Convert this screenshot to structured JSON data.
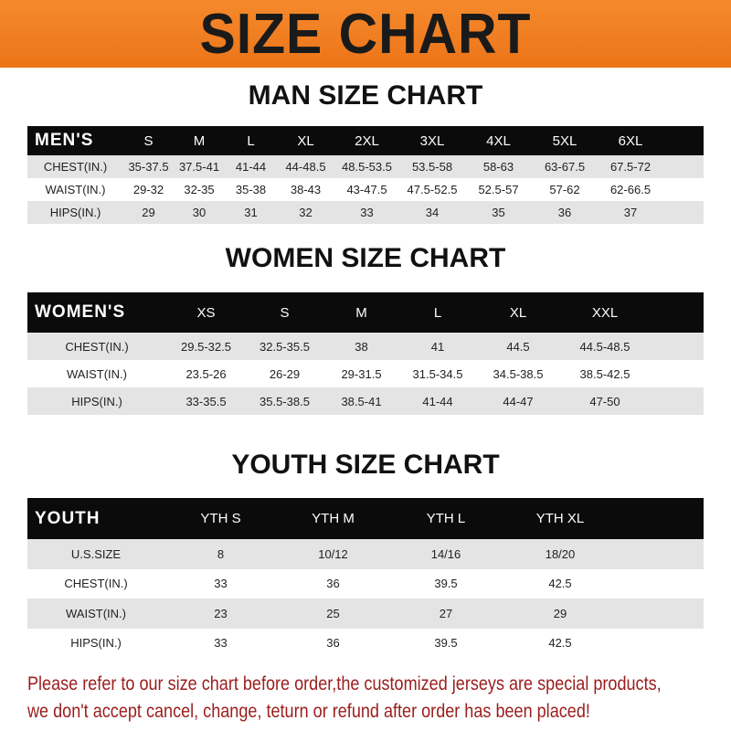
{
  "banner_title": "SIZE CHART",
  "colors": {
    "banner": "#ef7b1f",
    "header_row": "#0b0b0b",
    "stripe": "#e4e4e4",
    "note": "#9b1d1d"
  },
  "men": {
    "title": "MAN SIZE CHART",
    "header": [
      "MEN'S",
      "S",
      "M",
      "L",
      "XL",
      "2XL",
      "3XL",
      "4XL",
      "5XL",
      "6XL"
    ],
    "rows": [
      [
        "CHEST(IN.)",
        "35-37.5",
        "37.5-41",
        "41-44",
        "44-48.5",
        "48.5-53.5",
        "53.5-58",
        "58-63",
        "63-67.5",
        "67.5-72"
      ],
      [
        "WAIST(IN.)",
        "29-32",
        "32-35",
        "35-38",
        "38-43",
        "43-47.5",
        "47.5-52.5",
        "52.5-57",
        "57-62",
        "62-66.5"
      ],
      [
        "HIPS(IN.)",
        "29",
        "30",
        "31",
        "32",
        "33",
        "34",
        "35",
        "36",
        "37"
      ]
    ]
  },
  "women": {
    "title": "WOMEN SIZE CHART",
    "header": [
      "WOMEN'S",
      "XS",
      "S",
      "M",
      "L",
      "XL",
      "XXL"
    ],
    "rows": [
      [
        "CHEST(IN.)",
        "29.5-32.5",
        "32.5-35.5",
        "38",
        "41",
        "44.5",
        "44.5-48.5"
      ],
      [
        "WAIST(IN.)",
        "23.5-26",
        "26-29",
        "29-31.5",
        "31.5-34.5",
        "34.5-38.5",
        "38.5-42.5"
      ],
      [
        "HIPS(IN.)",
        "33-35.5",
        "35.5-38.5",
        "38.5-41",
        "41-44",
        "44-47",
        "47-50"
      ]
    ]
  },
  "youth": {
    "title": "YOUTH SIZE CHART",
    "header": [
      "YOUTH",
      "YTH S",
      "YTH M",
      "YTH L",
      "YTH XL"
    ],
    "rows": [
      [
        "U.S.SIZE",
        "8",
        "10/12",
        "14/16",
        "18/20"
      ],
      [
        "CHEST(IN.)",
        "33",
        "36",
        "39.5",
        "42.5"
      ],
      [
        "WAIST(IN.)",
        "23",
        "25",
        "27",
        "29"
      ],
      [
        "HIPS(IN.)",
        "33",
        "36",
        "39.5",
        "42.5"
      ]
    ]
  },
  "note": {
    "line1": "Please refer to our size chart before order,the customized jerseys are special products,",
    "line2": "we don't accept cancel, change, teturn or refund after order has been placed!"
  }
}
